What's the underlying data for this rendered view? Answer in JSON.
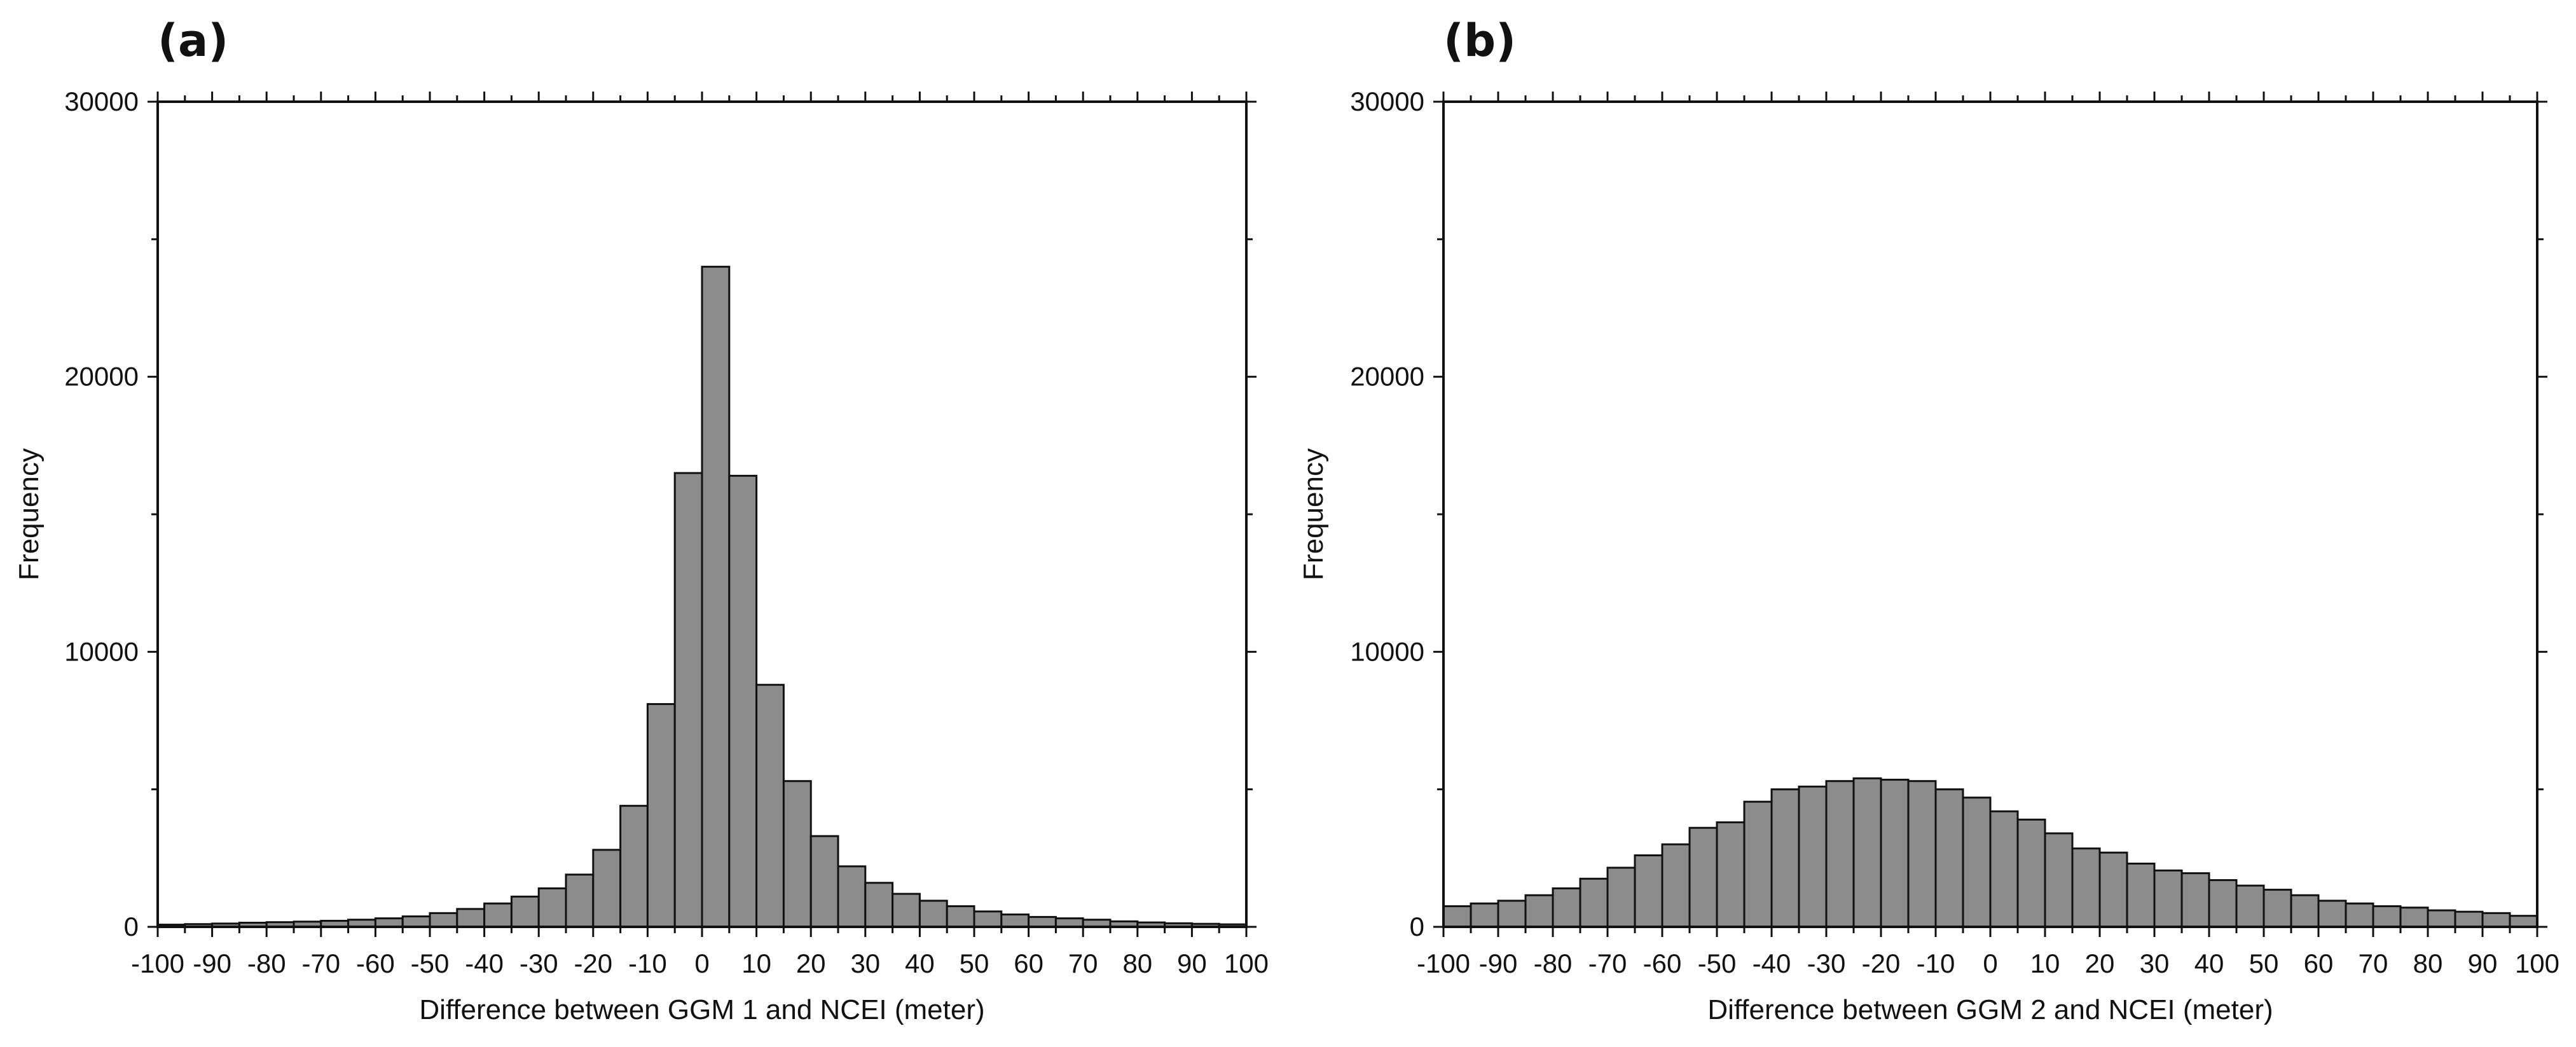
{
  "chart_data": [
    {
      "type": "bar",
      "panel_label": "(a)",
      "xlabel": "Difference between GGM 1 and NCEI (meter)",
      "ylabel": "Frequency",
      "xlim": [
        -100,
        100
      ],
      "ylim": [
        0,
        30000
      ],
      "x_tick_labels": [
        "-100",
        "-90",
        "-80",
        "-70",
        "-60",
        "-50",
        "-40",
        "-30",
        "-20",
        "-10",
        "0",
        "10",
        "20",
        "30",
        "40",
        "50",
        "60",
        "70",
        "80",
        "90",
        "100"
      ],
      "y_tick_labels": [
        "0",
        "10000",
        "20000",
        "30000"
      ],
      "bin_width": 5,
      "bin_starts": [
        -100,
        -95,
        -90,
        -85,
        -80,
        -75,
        -70,
        -65,
        -60,
        -55,
        -50,
        -45,
        -40,
        -35,
        -30,
        -25,
        -20,
        -15,
        -10,
        -5,
        0,
        5,
        10,
        15,
        20,
        25,
        30,
        35,
        40,
        45,
        50,
        55,
        60,
        65,
        70,
        75,
        80,
        85,
        90,
        95
      ],
      "values": [
        80,
        100,
        120,
        150,
        170,
        190,
        220,
        260,
        310,
        380,
        500,
        650,
        850,
        1100,
        1400,
        1900,
        2800,
        4400,
        8100,
        16500,
        24000,
        16400,
        8800,
        5300,
        3300,
        2200,
        1600,
        1200,
        950,
        750,
        560,
        450,
        360,
        310,
        260,
        200,
        160,
        130,
        110,
        90
      ],
      "bar_color": "#8c8c8c",
      "grid": false
    },
    {
      "type": "bar",
      "panel_label": "(b)",
      "xlabel": "Difference between GGM 2 and NCEI (meter)",
      "ylabel": "Frequency",
      "xlim": [
        -100,
        100
      ],
      "ylim": [
        0,
        30000
      ],
      "x_tick_labels": [
        "-100",
        "-90",
        "-80",
        "-70",
        "-60",
        "-50",
        "-40",
        "-30",
        "-20",
        "-10",
        "0",
        "10",
        "20",
        "30",
        "40",
        "50",
        "60",
        "70",
        "80",
        "90",
        "100"
      ],
      "y_tick_labels": [
        "0",
        "10000",
        "20000",
        "30000"
      ],
      "bin_width": 5,
      "bin_starts": [
        -100,
        -95,
        -90,
        -85,
        -80,
        -75,
        -70,
        -65,
        -60,
        -55,
        -50,
        -45,
        -40,
        -35,
        -30,
        -25,
        -20,
        -15,
        -10,
        -5,
        0,
        5,
        10,
        15,
        20,
        25,
        30,
        35,
        40,
        45,
        50,
        55,
        60,
        65,
        70,
        75,
        80,
        85,
        90,
        95
      ],
      "values": [
        750,
        850,
        950,
        1150,
        1400,
        1750,
        2150,
        2600,
        3000,
        3600,
        3800,
        4550,
        5000,
        5100,
        5300,
        5400,
        5350,
        5300,
        5000,
        4700,
        4200,
        3900,
        3400,
        2850,
        2700,
        2300,
        2050,
        1950,
        1700,
        1500,
        1350,
        1150,
        950,
        850,
        750,
        700,
        600,
        550,
        500,
        400
      ],
      "bar_color": "#8c8c8c",
      "grid": false
    }
  ]
}
